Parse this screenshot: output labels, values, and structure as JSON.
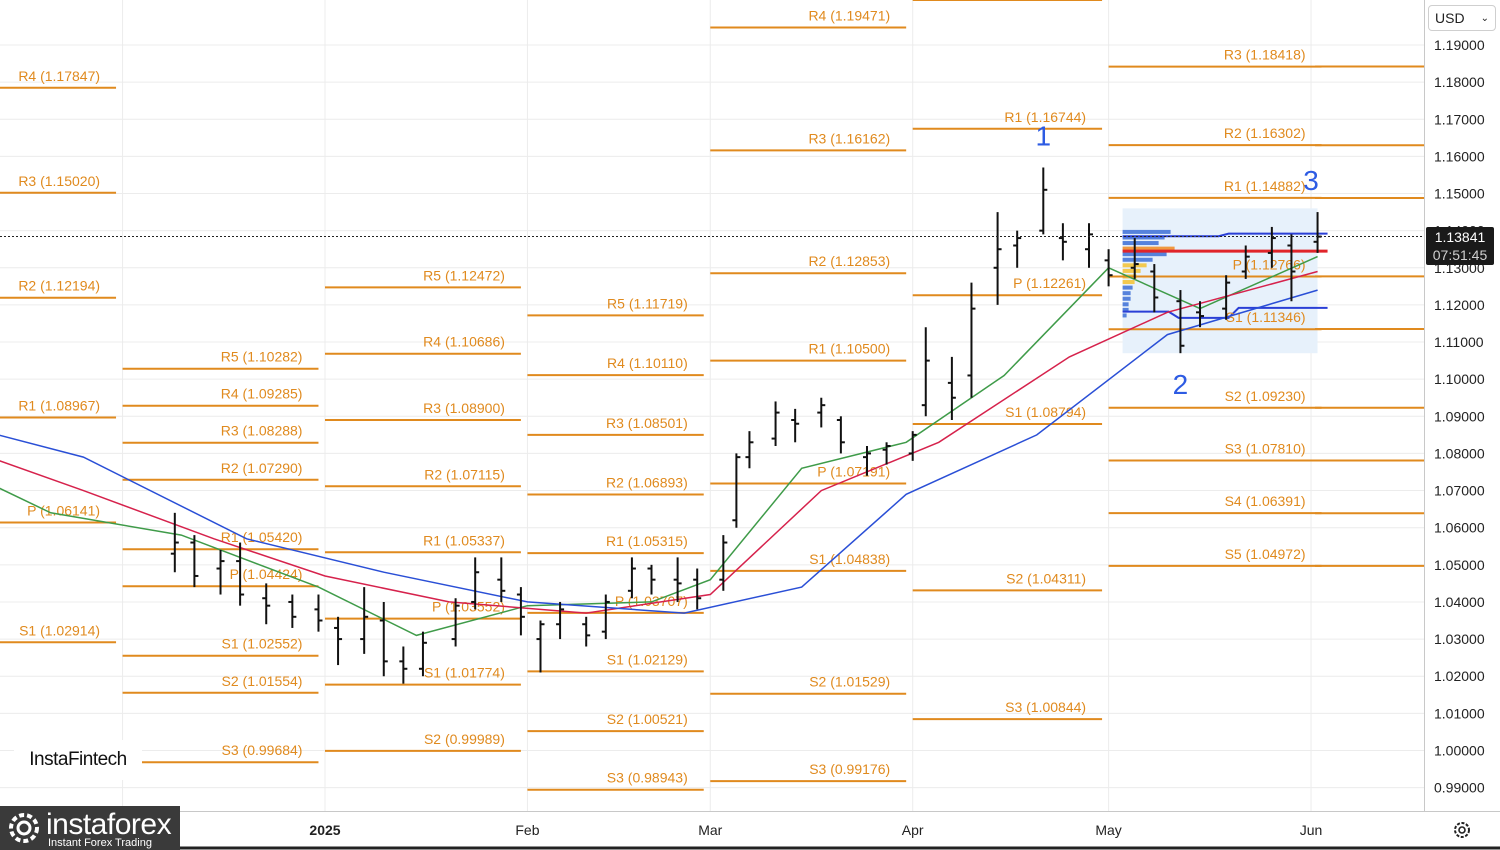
{
  "header": {
    "currency_label": "USD"
  },
  "price_tag": {
    "price": "1.13841",
    "countdown": "07:51:45"
  },
  "branding": {
    "chart_brand": "InstaFintech",
    "logo_name": "instaforex",
    "logo_sub": "Instant Forex Trading"
  },
  "icons": {
    "settings": "gear-icon",
    "dropdown": "chevron-down-icon",
    "logo": "instaforex-logo-icon"
  },
  "colors": {
    "pivot": "#e08a1e",
    "candle": "#111111",
    "ma_fast": "#3f9b49",
    "ma_mid": "#d6224c",
    "ma_slow": "#2a4fd6",
    "wave_label": "#2d5be3",
    "poc_line": "#e0242a"
  },
  "chart_data": {
    "type": "ohlc",
    "y_axis": {
      "ticks": [
        "1.19000",
        "1.18000",
        "1.17000",
        "1.16000",
        "1.15000",
        "1.14000",
        "1.13000",
        "1.12000",
        "1.11000",
        "1.10000",
        "1.09000",
        "1.08000",
        "1.07000",
        "1.06000",
        "1.05000",
        "1.04000",
        "1.03000",
        "1.02000",
        "1.01000",
        "1.00000",
        "0.99000"
      ],
      "ylim": [
        0.985,
        1.2045
      ]
    },
    "x_axis": {
      "labels": [
        {
          "text": "2025",
          "date": "2025-01-01"
        },
        {
          "text": "Feb",
          "date": "2025-02-01"
        },
        {
          "text": "Mar",
          "date": "2025-03-01"
        },
        {
          "text": "Apr",
          "date": "2025-04-01"
        },
        {
          "text": "May",
          "date": "2025-05-01"
        },
        {
          "text": "Jun",
          "date": "2025-06-01"
        }
      ]
    },
    "current_price": 1.13841,
    "wave_labels": [
      {
        "text": "1",
        "date": "2025-04-21",
        "price": 1.163
      },
      {
        "text": "2",
        "date": "2025-05-12",
        "price": 1.096
      },
      {
        "text": "3",
        "date": "2025-06-01",
        "price": 1.151
      }
    ],
    "pivot_levels": [
      {
        "start": "2024-11-01",
        "end": "2024-12-01",
        "levels": [
          [
            "R4",
            "1.17847",
            1.17847
          ],
          [
            "R3",
            "1.15020",
            1.1502
          ],
          [
            "R2",
            "1.12194",
            1.12194
          ],
          [
            "R1",
            "1.08967",
            1.08967
          ],
          [
            "P",
            "1.06141",
            1.06141
          ],
          [
            "S1",
            "1.02914",
            1.02914
          ]
        ]
      },
      {
        "start": "2024-12-01",
        "end": "2025-01-01",
        "levels": [
          [
            "R5",
            "1.10282",
            1.10282
          ],
          [
            "R4",
            "1.09285",
            1.09285
          ],
          [
            "R3",
            "1.08288",
            1.08288
          ],
          [
            "R2",
            "1.07290",
            1.0729
          ],
          [
            "R1",
            "1.05420",
            1.0542
          ],
          [
            "P",
            "1.04424",
            1.04424
          ],
          [
            "S1",
            "1.02552",
            1.02552
          ],
          [
            "S2",
            "1.01554",
            1.01554
          ],
          [
            "S3",
            "0.99684",
            0.99684
          ]
        ]
      },
      {
        "start": "2025-01-01",
        "end": "2025-02-01",
        "levels": [
          [
            "R5",
            "1.12472",
            1.12472
          ],
          [
            "R4",
            "1.10686",
            1.10686
          ],
          [
            "R3",
            "1.08900",
            1.089
          ],
          [
            "R2",
            "1.07115",
            1.07115
          ],
          [
            "R1",
            "1.05337",
            1.05337
          ],
          [
            "P",
            "1.03552",
            1.03552
          ],
          [
            "S1",
            "1.01774",
            1.01774
          ],
          [
            "S2",
            "0.99989",
            0.99989
          ]
        ]
      },
      {
        "start": "2025-02-01",
        "end": "2025-03-01",
        "levels": [
          [
            "R5",
            "1.11719",
            1.11719
          ],
          [
            "R4",
            "1.10110",
            1.1011
          ],
          [
            "R3",
            "1.08501",
            1.08501
          ],
          [
            "R2",
            "1.06893",
            1.06893
          ],
          [
            "R1",
            "1.05315",
            1.05315
          ],
          [
            "P",
            "1.03707",
            1.03707
          ],
          [
            "S1",
            "1.02129",
            1.02129
          ],
          [
            "S2",
            "1.00521",
            1.00521
          ],
          [
            "S3",
            "0.98943",
            0.98943
          ]
        ]
      },
      {
        "start": "2025-03-01",
        "end": "2025-04-01",
        "levels": [
          [
            "R4",
            "1.19471",
            1.19471
          ],
          [
            "R3",
            "1.16162",
            1.16162
          ],
          [
            "R2",
            "1.12853",
            1.12853
          ],
          [
            "R1",
            "1.10500",
            1.105
          ],
          [
            "P",
            "1.07191",
            1.07191
          ],
          [
            "S1",
            "1.04838",
            1.04838
          ],
          [
            "S2",
            "1.01529",
            1.01529
          ],
          [
            "S3",
            "0.99176",
            0.99176
          ]
        ]
      },
      {
        "start": "2025-04-01",
        "end": "2025-05-01",
        "levels": [
          [
            "R2",
            "1.20211",
            1.20211
          ],
          [
            "R1",
            "1.16744",
            1.16744
          ],
          [
            "P",
            "1.12261",
            1.12261
          ],
          [
            "S1",
            "1.08794",
            1.08794
          ],
          [
            "S2",
            "1.04311",
            1.04311
          ],
          [
            "S3",
            "1.00844",
            1.00844
          ]
        ]
      },
      {
        "start": "2025-05-01",
        "end": "2025-06-01",
        "levels": [
          [
            "R3",
            "1.18418",
            1.18418
          ],
          [
            "R2",
            "1.16302",
            1.16302
          ],
          [
            "R1",
            "1.14882",
            1.14882
          ],
          [
            "P",
            "1.12766",
            1.12766
          ],
          [
            "S1",
            "1.11346",
            1.11346
          ],
          [
            "S2",
            "1.09230",
            1.0923
          ],
          [
            "S3",
            "1.07810",
            1.0781
          ],
          [
            "S4",
            "1.06391",
            1.06391
          ],
          [
            "S5",
            "1.04972",
            1.04972
          ]
        ]
      }
    ],
    "series": [
      {
        "name": "OHLC",
        "type": "ohlc",
        "points": [
          [
            "2024-12-09",
            1.053,
            1.064,
            1.048,
            1.056
          ],
          [
            "2024-12-12",
            1.056,
            1.058,
            1.044,
            1.047
          ],
          [
            "2024-12-16",
            1.049,
            1.054,
            1.042,
            1.051
          ],
          [
            "2024-12-19",
            1.051,
            1.056,
            1.039,
            1.042
          ],
          [
            "2024-12-23",
            1.041,
            1.045,
            1.034,
            1.039
          ],
          [
            "2024-12-27",
            1.04,
            1.042,
            1.033,
            1.036
          ],
          [
            "2024-12-31",
            1.038,
            1.042,
            1.032,
            1.035
          ],
          [
            "2025-01-03",
            1.033,
            1.036,
            1.023,
            1.03
          ],
          [
            "2025-01-07",
            1.03,
            1.044,
            1.026,
            1.036
          ],
          [
            "2025-01-10",
            1.035,
            1.04,
            1.02,
            1.024
          ],
          [
            "2025-01-13",
            1.024,
            1.028,
            1.018,
            1.022
          ],
          [
            "2025-01-16",
            1.022,
            1.032,
            1.02,
            1.029
          ],
          [
            "2025-01-21",
            1.03,
            1.041,
            1.028,
            1.039
          ],
          [
            "2025-01-24",
            1.04,
            1.052,
            1.038,
            1.048
          ],
          [
            "2025-01-28",
            1.046,
            1.052,
            1.04,
            1.043
          ],
          [
            "2025-01-31",
            1.042,
            1.044,
            1.031,
            1.036
          ],
          [
            "2025-02-03",
            1.03,
            1.035,
            1.021,
            1.034
          ],
          [
            "2025-02-06",
            1.034,
            1.04,
            1.03,
            1.038
          ],
          [
            "2025-02-10",
            1.034,
            1.036,
            1.028,
            1.031
          ],
          [
            "2025-02-13",
            1.032,
            1.042,
            1.03,
            1.04
          ],
          [
            "2025-02-17",
            1.043,
            1.052,
            1.041,
            1.049
          ],
          [
            "2025-02-20",
            1.049,
            1.05,
            1.042,
            1.046
          ],
          [
            "2025-02-24",
            1.046,
            1.052,
            1.04,
            1.045
          ],
          [
            "2025-02-27",
            1.046,
            1.049,
            1.038,
            1.041
          ],
          [
            "2025-03-03",
            1.046,
            1.058,
            1.043,
            1.056
          ],
          [
            "2025-03-05",
            1.062,
            1.08,
            1.06,
            1.079
          ],
          [
            "2025-03-07",
            1.079,
            1.086,
            1.076,
            1.083
          ],
          [
            "2025-03-11",
            1.084,
            1.094,
            1.082,
            1.091
          ],
          [
            "2025-03-14",
            1.089,
            1.092,
            1.083,
            1.088
          ],
          [
            "2025-03-18",
            1.091,
            1.095,
            1.087,
            1.093
          ],
          [
            "2025-03-21",
            1.089,
            1.09,
            1.08,
            1.083
          ],
          [
            "2025-03-25",
            1.079,
            1.082,
            1.074,
            1.08
          ],
          [
            "2025-03-28",
            1.081,
            1.083,
            1.077,
            1.082
          ],
          [
            "2025-04-01",
            1.08,
            1.086,
            1.078,
            1.085
          ],
          [
            "2025-04-03",
            1.093,
            1.114,
            1.09,
            1.105
          ],
          [
            "2025-04-07",
            1.099,
            1.106,
            1.089,
            1.095
          ],
          [
            "2025-04-10",
            1.101,
            1.126,
            1.095,
            1.119
          ],
          [
            "2025-04-14",
            1.13,
            1.145,
            1.12,
            1.135
          ],
          [
            "2025-04-17",
            1.136,
            1.14,
            1.13,
            1.138
          ],
          [
            "2025-04-21",
            1.14,
            1.157,
            1.139,
            1.151
          ],
          [
            "2025-04-24",
            1.138,
            1.142,
            1.132,
            1.137
          ],
          [
            "2025-04-28",
            1.135,
            1.142,
            1.13,
            1.139
          ],
          [
            "2025-05-01",
            1.132,
            1.135,
            1.125,
            1.128
          ],
          [
            "2025-05-05",
            1.13,
            1.138,
            1.127,
            1.131
          ],
          [
            "2025-05-08",
            1.129,
            1.131,
            1.118,
            1.122
          ],
          [
            "2025-05-12",
            1.121,
            1.124,
            1.107,
            1.109
          ],
          [
            "2025-05-15",
            1.118,
            1.121,
            1.114,
            1.117
          ],
          [
            "2025-05-19",
            1.119,
            1.128,
            1.116,
            1.126
          ],
          [
            "2025-05-22",
            1.129,
            1.136,
            1.127,
            1.133
          ],
          [
            "2025-05-26",
            1.134,
            1.141,
            1.13,
            1.138
          ],
          [
            "2025-05-29",
            1.136,
            1.139,
            1.121,
            1.129
          ],
          [
            "2025-06-02",
            1.137,
            1.145,
            1.134,
            1.1384
          ]
        ]
      },
      {
        "name": "MA fast",
        "type": "line",
        "color": "#3f9b49",
        "points": [
          [
            "2024-11-01",
            1.08
          ],
          [
            "2024-11-20",
            1.064
          ],
          [
            "2024-12-10",
            1.058
          ],
          [
            "2024-12-31",
            1.044
          ],
          [
            "2025-01-15",
            1.031
          ],
          [
            "2025-02-01",
            1.039
          ],
          [
            "2025-02-20",
            1.04
          ],
          [
            "2025-03-01",
            1.046
          ],
          [
            "2025-03-15",
            1.076
          ],
          [
            "2025-03-31",
            1.083
          ],
          [
            "2025-04-15",
            1.101
          ],
          [
            "2025-05-01",
            1.13
          ],
          [
            "2025-05-15",
            1.119
          ],
          [
            "2025-06-02",
            1.133
          ]
        ]
      },
      {
        "name": "MA mid",
        "type": "line",
        "color": "#d6224c",
        "points": [
          [
            "2024-11-01",
            1.085
          ],
          [
            "2024-11-25",
            1.07
          ],
          [
            "2024-12-15",
            1.057
          ],
          [
            "2025-01-01",
            1.047
          ],
          [
            "2025-01-20",
            1.04
          ],
          [
            "2025-02-10",
            1.037
          ],
          [
            "2025-03-01",
            1.042
          ],
          [
            "2025-03-18",
            1.07
          ],
          [
            "2025-04-05",
            1.083
          ],
          [
            "2025-04-25",
            1.106
          ],
          [
            "2025-05-10",
            1.118
          ],
          [
            "2025-06-02",
            1.129
          ]
        ]
      },
      {
        "name": "MA slow",
        "type": "line",
        "color": "#2a4fd6",
        "points": [
          [
            "2024-11-01",
            1.09
          ],
          [
            "2024-11-25",
            1.079
          ],
          [
            "2024-12-20",
            1.057
          ],
          [
            "2025-01-10",
            1.048
          ],
          [
            "2025-02-01",
            1.04
          ],
          [
            "2025-02-25",
            1.037
          ],
          [
            "2025-03-15",
            1.044
          ],
          [
            "2025-03-31",
            1.069
          ],
          [
            "2025-04-20",
            1.085
          ],
          [
            "2025-05-10",
            1.112
          ],
          [
            "2025-06-02",
            1.124
          ]
        ]
      }
    ]
  }
}
